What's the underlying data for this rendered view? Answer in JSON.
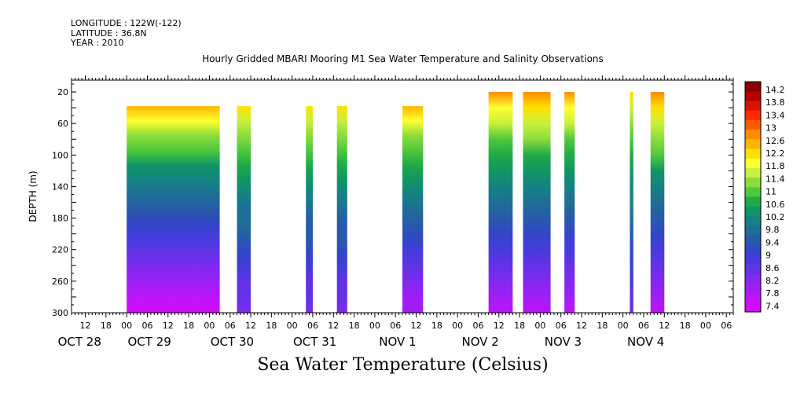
{
  "header": {
    "longitude": "LONGITUDE : 122W(-122)",
    "latitude": "LATITUDE : 36.8N",
    "year": "YEAR : 2010",
    "title": "Hourly Gridded MBARI Mooring M1 Sea Water Temperature and Salinity Observations"
  },
  "colors": {
    "no_data": "#ffffff",
    "axis": "#000000"
  },
  "chart_data": {
    "type": "heatmap",
    "title": "Sea Water Temperature (Celsius)",
    "ylabel": "DEPTH (m)",
    "y_ticks": [
      20,
      60,
      100,
      140,
      180,
      220,
      260,
      300
    ],
    "ylim": [
      300,
      5
    ],
    "x_hour_ticks": [
      "12",
      "18",
      "00",
      "06",
      "12",
      "18",
      "00",
      "06",
      "12",
      "18",
      "00",
      "06",
      "12",
      "18",
      "00",
      "06",
      "12",
      "18",
      "00",
      "06",
      "12",
      "18",
      "00",
      "06",
      "12",
      "18",
      "00",
      "06",
      "12",
      "18",
      "00",
      "06"
    ],
    "x_date_labels": [
      "OCT 28",
      "OCT 29",
      "OCT 30",
      "OCT 31",
      "NOV  1",
      "NOV  2",
      "NOV  3",
      "NOV  4"
    ],
    "xlim_hours_from_oct28_00": [
      8,
      200
    ],
    "colorbar": {
      "labels": [
        "14.2",
        "13.8",
        "13.4",
        "13",
        "12.6",
        "12.2",
        "11.8",
        "11.4",
        "11",
        "10.6",
        "10.2",
        "9.8",
        "9.4",
        "9",
        "8.6",
        "8.2",
        "7.8",
        "7.4"
      ],
      "colors": [
        "#8b0000",
        "#b30000",
        "#d71500",
        "#ff2a00",
        "#ff5a00",
        "#ff8c00",
        "#ffb400",
        "#ffe100",
        "#ffff30",
        "#c8f03c",
        "#8cdc3c",
        "#50c83c",
        "#1eaa46",
        "#0f9664",
        "#148282",
        "#1e6e96",
        "#285aaa",
        "#3246c8",
        "#463cdc",
        "#6432e6",
        "#8228f0",
        "#a01ef5",
        "#be14fa",
        "#d20aff"
      ],
      "min": 7.4,
      "max": 14.2
    },
    "data_blocks": [
      {
        "start": "OCT 29 00",
        "end": "OCT 30 03",
        "top_depth": 38,
        "surface_temp": 12.4,
        "bottom_temp": 7.5
      },
      {
        "start": "OCT 30 08",
        "end": "OCT 30 12",
        "top_depth": 38,
        "surface_temp": 12.2,
        "bottom_temp": 8.3
      },
      {
        "start": "OCT 31 04",
        "end": "OCT 31 06",
        "top_depth": 38,
        "surface_temp": 12.0,
        "bottom_temp": 8.3
      },
      {
        "start": "OCT 31 13",
        "end": "OCT 31 16",
        "top_depth": 38,
        "surface_temp": 12.0,
        "bottom_temp": 8.3
      },
      {
        "start": "NOV 1 08",
        "end": "NOV 1 14",
        "top_depth": 38,
        "surface_temp": 12.3,
        "bottom_temp": 7.9
      },
      {
        "start": "NOV 2 09",
        "end": "NOV 2 16",
        "top_depth": 20,
        "surface_temp": 12.6,
        "bottom_temp": 7.8
      },
      {
        "start": "NOV 2 19",
        "end": "NOV 3 03",
        "top_depth": 20,
        "surface_temp": 12.7,
        "bottom_temp": 7.7
      },
      {
        "start": "NOV 3 07",
        "end": "NOV 3 10",
        "top_depth": 20,
        "surface_temp": 12.6,
        "bottom_temp": 7.8
      },
      {
        "start": "NOV 4 02",
        "end": "NOV 4 03",
        "top_depth": 20,
        "surface_temp": 12.0,
        "bottom_temp": 8.5
      },
      {
        "start": "NOV 4 08",
        "end": "NOV 4 12",
        "top_depth": 20,
        "surface_temp": 12.8,
        "bottom_temp": 7.8
      }
    ]
  }
}
